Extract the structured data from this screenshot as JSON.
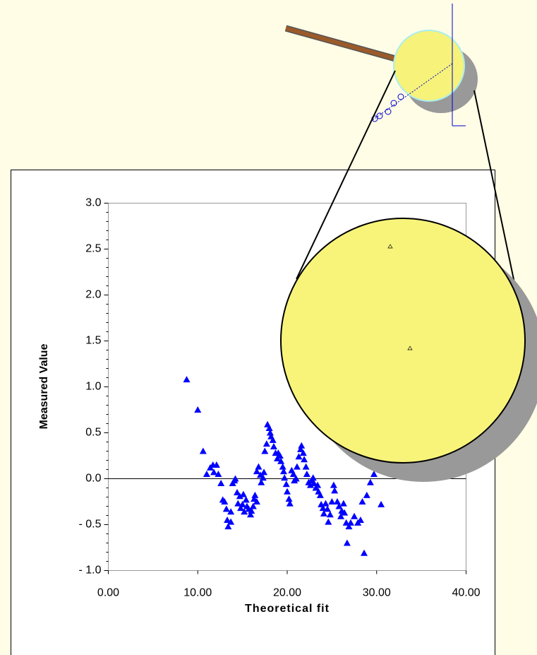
{
  "chart_data": {
    "type": "scatter",
    "x_label": "Theoretical fit",
    "y_label": "Measured Value",
    "xlim": [
      0,
      40
    ],
    "ylim": [
      -1,
      3
    ],
    "xticks": [
      {
        "value": 0,
        "label": "0.00"
      },
      {
        "value": 10,
        "label": "10.00"
      },
      {
        "value": 20,
        "label": "20.00"
      },
      {
        "value": 30,
        "label": "30.00"
      },
      {
        "value": 40,
        "label": "40.00"
      }
    ],
    "yticks": [
      {
        "value": -1,
        "label": "- 1.0"
      },
      {
        "value": -0.5,
        "label": "- 0.5"
      },
      {
        "value": 0,
        "label": "0.0"
      },
      {
        "value": 0.5,
        "label": "0.5"
      },
      {
        "value": 1,
        "label": "1.0"
      },
      {
        "value": 1.5,
        "label": "1.5"
      },
      {
        "value": 2,
        "label": "2.0"
      },
      {
        "value": 2.5,
        "label": "2.5"
      },
      {
        "value": 3,
        "label": "3.0"
      }
    ],
    "zero_line": true,
    "marker": "triangle",
    "series": [
      {
        "color": "#0000ff",
        "x": [
          8.76,
          10.0,
          10.6,
          11.0,
          11.4,
          11.7,
          11.8,
          12.1,
          12.3,
          12.6,
          12.8,
          13.0,
          13.2,
          13.3,
          13.4,
          13.7,
          13.7,
          13.9,
          14.1,
          14.2,
          14.4,
          14.5,
          14.7,
          14.8,
          15.0,
          15.1,
          15.2,
          15.4,
          15.5,
          15.7,
          15.9,
          16.0,
          16.2,
          16.3,
          16.4,
          16.6,
          16.6,
          16.8,
          17.0,
          17.1,
          17.3,
          17.4,
          17.5,
          17.7,
          17.8,
          18.0,
          18.1,
          18.2,
          18.4,
          18.5,
          18.7,
          18.9,
          19.0,
          19.2,
          19.3,
          19.5,
          19.6,
          19.7,
          19.9,
          20.0,
          20.2,
          20.3,
          20.5,
          20.7,
          20.8,
          21.0,
          21.1,
          21.3,
          21.5,
          21.6,
          21.8,
          21.9,
          22.1,
          22.2,
          22.4,
          22.6,
          22.7,
          22.9,
          23.0,
          23.2,
          23.4,
          23.5,
          23.7,
          23.8,
          24.0,
          24.1,
          24.3,
          24.5,
          24.6,
          24.8,
          25.0,
          25.2,
          25.3,
          25.6,
          25.8,
          26.0,
          26.1,
          26.3,
          26.4,
          26.6,
          26.7,
          26.9,
          27.1,
          27.5,
          27.9,
          28.2,
          28.4,
          28.6,
          28.9,
          29.3,
          29.7,
          30.5
        ],
        "values": [
          1.08,
          0.75,
          0.3,
          0.05,
          0.12,
          0.15,
          0.07,
          0.15,
          0.05,
          -0.05,
          -0.23,
          -0.25,
          -0.33,
          -0.45,
          -0.52,
          -0.47,
          -0.36,
          -0.05,
          -0.02,
          0.0,
          -0.15,
          -0.27,
          -0.19,
          -0.32,
          -0.28,
          -0.17,
          -0.36,
          -0.23,
          -0.3,
          -0.33,
          -0.39,
          -0.35,
          -0.3,
          -0.22,
          -0.18,
          -0.25,
          0.08,
          0.13,
          0.04,
          -0.04,
          0.01,
          0.07,
          0.3,
          0.38,
          0.59,
          0.55,
          0.5,
          0.46,
          0.42,
          0.35,
          0.28,
          0.22,
          0.28,
          0.25,
          0.19,
          0.13,
          0.08,
          0.01,
          -0.06,
          -0.14,
          -0.22,
          -0.27,
          0.09,
          0.05,
          -0.02,
          0.0,
          0.13,
          0.24,
          0.32,
          0.36,
          0.28,
          0.21,
          0.13,
          0.05,
          -0.04,
          -0.07,
          -0.02,
          0.01,
          -0.05,
          -0.1,
          -0.07,
          -0.14,
          -0.18,
          -0.28,
          -0.32,
          -0.38,
          -0.27,
          -0.33,
          -0.47,
          -0.39,
          -0.25,
          -0.07,
          -0.13,
          -0.25,
          -0.3,
          -0.41,
          -0.35,
          -0.27,
          -0.37,
          -0.48,
          -0.7,
          -0.52,
          -0.48,
          -0.41,
          -0.48,
          -0.45,
          -0.25,
          -0.81,
          -0.18,
          -0.04,
          0.05,
          -0.28
        ]
      }
    ]
  }
}
